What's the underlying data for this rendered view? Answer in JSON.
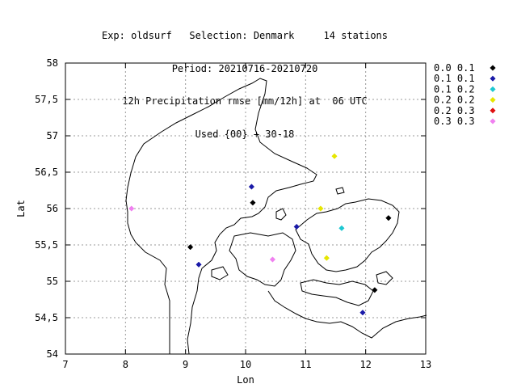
{
  "title": {
    "line1": "Exp: oldsurf   Selection: Denmark     14 stations",
    "line2": "Period: 20210716-20210720",
    "line3": "12h Precipitation rmse [mm/12h] at  06 UTC",
    "line4": "Used {00} + 30-18"
  },
  "axes": {
    "xlabel": "Lon",
    "ylabel": "Lat",
    "xlim": [
      7,
      13
    ],
    "ylim": [
      54,
      58
    ],
    "xticks": [
      "7",
      "8",
      "9",
      "10",
      "11",
      "12",
      "13"
    ],
    "yticks": [
      "54",
      "54,5",
      "55",
      "55,5",
      "56",
      "56,5",
      "57",
      "57,5",
      "58"
    ],
    "grid": true
  },
  "legend": {
    "placement": "right",
    "items": [
      {
        "label": "0.0 0.1",
        "color": "#000000"
      },
      {
        "label": "0.1 0.1",
        "color": "#1a1aa8"
      },
      {
        "label": "0.1 0.2",
        "color": "#1ec8d2"
      },
      {
        "label": "0.2 0.2",
        "color": "#e6e600"
      },
      {
        "label": "0.2 0.3",
        "color": "#e01010"
      },
      {
        "label": "0.3 0.3",
        "color": "#f080f0"
      }
    ]
  },
  "stations": [
    {
      "lon": 8.1,
      "lat": 56.0,
      "class": 5
    },
    {
      "lon": 9.08,
      "lat": 55.47,
      "class": 0
    },
    {
      "lon": 9.22,
      "lat": 55.23,
      "class": 1
    },
    {
      "lon": 10.12,
      "lat": 56.08,
      "class": 0
    },
    {
      "lon": 10.1,
      "lat": 56.3,
      "class": 1
    },
    {
      "lon": 10.45,
      "lat": 55.3,
      "class": 5
    },
    {
      "lon": 10.85,
      "lat": 55.75,
      "class": 1
    },
    {
      "lon": 11.25,
      "lat": 56.0,
      "class": 3
    },
    {
      "lon": 11.35,
      "lat": 55.32,
      "class": 3
    },
    {
      "lon": 11.48,
      "lat": 56.72,
      "class": 3
    },
    {
      "lon": 11.6,
      "lat": 55.73,
      "class": 2
    },
    {
      "lon": 12.38,
      "lat": 55.87,
      "class": 0
    },
    {
      "lon": 12.15,
      "lat": 54.88,
      "class": 0
    },
    {
      "lon": 11.95,
      "lat": 54.57,
      "class": 1
    }
  ]
}
